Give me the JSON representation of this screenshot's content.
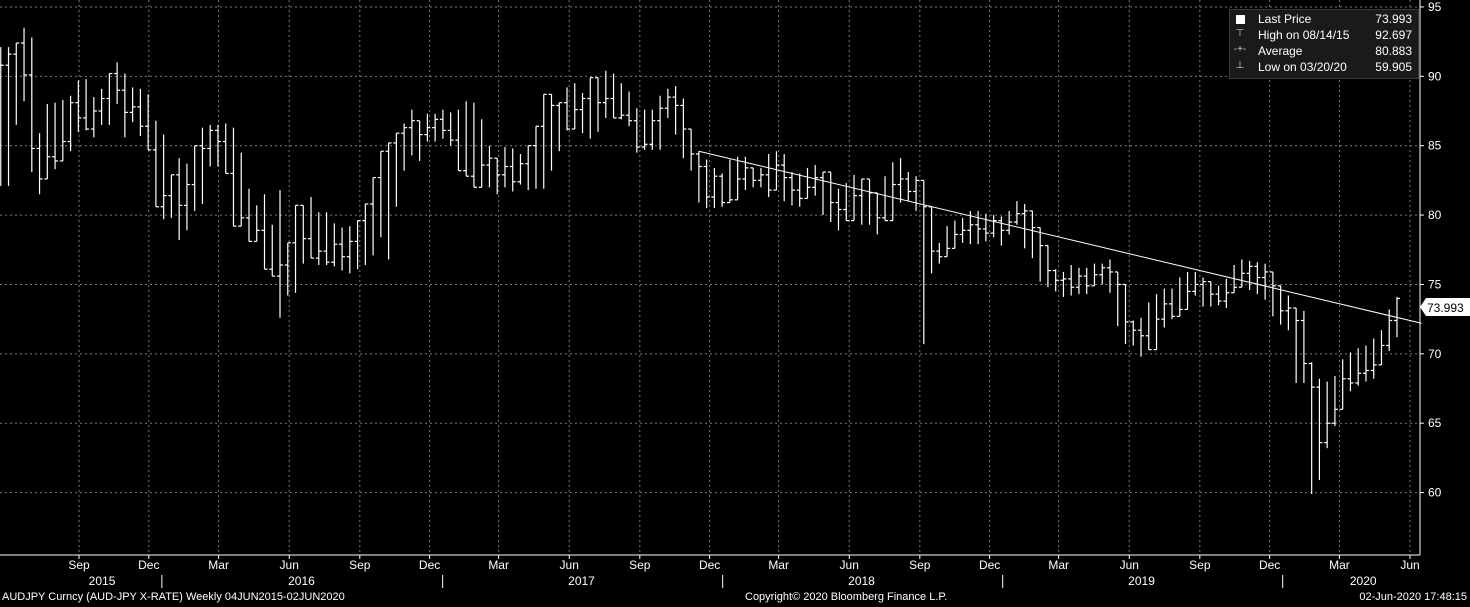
{
  "chart_data": {
    "type": "ohlc",
    "series_name": "AUDJPY Curncy (AUD-JPY X-RATE)",
    "frequency": "Weekly",
    "date_range": "04JUN2015-02JUN2020",
    "y_ticks": [
      60,
      65,
      70,
      75,
      80,
      85,
      90,
      95
    ],
    "y_range": [
      55.5,
      95.5
    ],
    "x_month_labels": [
      "Sep",
      "Dec",
      "Mar",
      "Jun",
      "Sep",
      "Dec",
      "Mar",
      "Jun",
      "Sep",
      "Dec",
      "Mar",
      "Jun",
      "Sep",
      "Dec",
      "Mar",
      "Jun",
      "Sep",
      "Dec",
      "Mar",
      "Jun"
    ],
    "x_year_labels": [
      "2015",
      "2016",
      "2017",
      "2018",
      "2019",
      "2020"
    ],
    "grid": true,
    "last_price_tag": "73.993",
    "trendline": {
      "x1": "2017-12-01",
      "y1": 84.6,
      "x2": "2020-06-30",
      "y2": 72.2
    },
    "closes": [
      90.8,
      91.6,
      92.4,
      90.1,
      84.8,
      82.6,
      84.2,
      83.9,
      85.3,
      88.1,
      87.0,
      86.2,
      87.5,
      88.4,
      90.2,
      89.0,
      87.4,
      87.8,
      86.4,
      84.7,
      80.6,
      81.4,
      82.9,
      80.7,
      82.2,
      85.0,
      84.8,
      86.1,
      85.3,
      83.0,
      79.2,
      79.8,
      78.1,
      78.9,
      76.1,
      75.6,
      76.4,
      78.0,
      80.7,
      78.3,
      76.9,
      77.4,
      76.6,
      77.9,
      77.0,
      78.1,
      79.6,
      80.8,
      82.7,
      84.6,
      85.2,
      85.9,
      86.3,
      86.8,
      85.8,
      86.3,
      86.9,
      86.1,
      85.4,
      83.2,
      82.8,
      82.0,
      83.6,
      84.1,
      82.9,
      83.5,
      82.4,
      83.7,
      85.0,
      86.4,
      88.7,
      87.9,
      88.1,
      86.2,
      87.6,
      88.4,
      89.9,
      88.1,
      88.4,
      87.0,
      87.2,
      86.8,
      84.9,
      85.1,
      86.8,
      87.7,
      88.5,
      87.9,
      86.2,
      84.4,
      83.5,
      81.3,
      82.8,
      80.9,
      81.1,
      82.6,
      83.4,
      82.5,
      82.9,
      81.8,
      83.6,
      82.7,
      81.8,
      81.2,
      82.0,
      82.7,
      83.1,
      80.9,
      80.4,
      79.6,
      81.4,
      82.6,
      81.6,
      79.8,
      79.6,
      82.2,
      82.6,
      81.7,
      82.5,
      80.6,
      77.4,
      77.0,
      77.6,
      78.6,
      78.9,
      79.3,
      79.0,
      78.7,
      79.6,
      78.9,
      79.5,
      80.1,
      80.3,
      79.1,
      77.8,
      76.0,
      75.3,
      75.4,
      74.8,
      75.6,
      74.9,
      75.7,
      76.2,
      75.9,
      75.0,
      72.3,
      71.7,
      71.3,
      70.3,
      72.5,
      73.6,
      72.7,
      73.2,
      74.5,
      75.0,
      75.2,
      74.3,
      73.8,
      74.4,
      74.8,
      75.8,
      76.3,
      75.5,
      75.9,
      74.9,
      73.1,
      73.3,
      72.4,
      69.3,
      67.6,
      63.6,
      65.0,
      66.0,
      68.2,
      67.9,
      68.6,
      68.8,
      69.2,
      70.6,
      72.4,
      73.993
    ],
    "ranges": [
      {
        "h": 92.1,
        "l": 82.1
      },
      {
        "h": 91.7,
        "l": 86.5
      },
      {
        "h": 93.5,
        "l": 88.2
      },
      {
        "h": 92.8,
        "l": 83.1
      },
      {
        "h": 85.9,
        "l": 81.5
      },
      {
        "h": 88.0,
        "l": 82.6
      },
      {
        "h": 88.1,
        "l": 83.3
      },
      {
        "h": 88.3,
        "l": 84.1
      },
      {
        "h": 88.6,
        "l": 84.6
      },
      {
        "h": 89.7,
        "l": 86.0
      },
      {
        "h": 89.8,
        "l": 86.1
      },
      {
        "h": 88.5,
        "l": 85.6
      },
      {
        "h": 89.1,
        "l": 86.5
      },
      {
        "h": 91.0,
        "l": 88.0
      },
      {
        "h": 90.2,
        "l": 85.6
      },
      {
        "h": 89.2,
        "l": 86.7
      },
      {
        "h": 89.1,
        "l": 85.7
      },
      {
        "h": 88.7,
        "l": 85.5
      },
      {
        "h": 86.8,
        "l": 84.3
      },
      {
        "h": 85.8,
        "l": 79.7
      },
      {
        "h": 82.6,
        "l": 79.8
      },
      {
        "h": 84.1,
        "l": 78.2
      },
      {
        "h": 83.7,
        "l": 78.9
      },
      {
        "h": 83.8,
        "l": 80.3
      },
      {
        "h": 86.3,
        "l": 80.8
      },
      {
        "h": 86.5,
        "l": 83.5
      },
      {
        "h": 86.6,
        "l": 84.7
      },
      {
        "h": 86.3,
        "l": 79.4
      },
      {
        "h": 84.5,
        "l": 80.1
      },
      {
        "h": 81.9,
        "l": 78.6
      },
      {
        "h": 80.7,
        "l": 78.9
      },
      {
        "h": 81.5,
        "l": 77.6
      },
      {
        "h": 79.3,
        "l": 76.3
      },
      {
        "h": 81.8,
        "l": 72.6
      },
      {
        "h": 77.6,
        "l": 74.2
      },
      {
        "h": 78.6,
        "l": 74.4
      },
      {
        "h": 80.5,
        "l": 76.5
      },
      {
        "h": 81.3,
        "l": 77.2
      },
      {
        "h": 80.2,
        "l": 76.4
      },
      {
        "h": 79.4,
        "l": 76.3
      },
      {
        "h": 79.1,
        "l": 76.0
      },
      {
        "h": 79.2,
        "l": 75.8
      },
      {
        "h": 79.5,
        "l": 76.1
      },
      {
        "h": 79.4,
        "l": 76.4
      },
      {
        "h": 80.8,
        "l": 77.1
      },
      {
        "h": 82.3,
        "l": 78.4
      },
      {
        "h": 83.5,
        "l": 76.8
      },
      {
        "h": 85.1,
        "l": 80.6
      },
      {
        "h": 86.6,
        "l": 83.2
      },
      {
        "h": 87.6,
        "l": 84.3
      },
      {
        "h": 86.7,
        "l": 83.9
      },
      {
        "h": 87.3,
        "l": 85.3
      },
      {
        "h": 87.6,
        "l": 85.5
      },
      {
        "h": 87.4,
        "l": 85.0
      },
      {
        "h": 87.6,
        "l": 85.7
      },
      {
        "h": 88.2,
        "l": 85.7
      },
      {
        "h": 88.1,
        "l": 85.2
      },
      {
        "h": 86.9,
        "l": 82.3
      },
      {
        "h": 85.0,
        "l": 82.0
      },
      {
        "h": 83.8,
        "l": 81.5
      },
      {
        "h": 84.9,
        "l": 82.0
      },
      {
        "h": 84.8,
        "l": 81.7
      },
      {
        "h": 84.4,
        "l": 82.2
      },
      {
        "h": 84.3,
        "l": 81.8
      },
      {
        "h": 84.6,
        "l": 81.9
      },
      {
        "h": 86.3,
        "l": 83.2
      },
      {
        "h": 87.4,
        "l": 84.6
      },
      {
        "h": 89.2,
        "l": 86.1
      },
      {
        "h": 89.5,
        "l": 87.0
      },
      {
        "h": 88.8,
        "l": 85.9
      },
      {
        "h": 88.4,
        "l": 85.5
      },
      {
        "h": 88.8,
        "l": 86.0
      },
      {
        "h": 90.4,
        "l": 87.0
      },
      {
        "h": 90.2,
        "l": 87.3
      },
      {
        "h": 89.5,
        "l": 86.9
      },
      {
        "h": 88.9,
        "l": 86.4
      },
      {
        "h": 87.7,
        "l": 84.5
      },
      {
        "h": 87.6,
        "l": 84.7
      },
      {
        "h": 88.6,
        "l": 84.7
      },
      {
        "h": 89.1,
        "l": 87.0
      },
      {
        "h": 89.3,
        "l": 85.8
      },
      {
        "h": 88.4,
        "l": 84.1
      },
      {
        "h": 85.5,
        "l": 83.2
      },
      {
        "h": 84.6,
        "l": 80.9
      },
      {
        "h": 84.0,
        "l": 80.5
      },
      {
        "h": 83.4,
        "l": 80.5
      },
      {
        "h": 83.0,
        "l": 80.6
      },
      {
        "h": 84.0,
        "l": 81.7
      },
      {
        "h": 84.2,
        "l": 82.0
      },
      {
        "h": 84.2,
        "l": 81.8
      },
      {
        "h": 83.4,
        "l": 82.0
      },
      {
        "h": 84.4,
        "l": 81.3
      },
      {
        "h": 84.6,
        "l": 82.1
      },
      {
        "h": 84.4,
        "l": 81.0
      },
      {
        "h": 83.1,
        "l": 80.7
      },
      {
        "h": 83.0,
        "l": 80.6
      },
      {
        "h": 83.4,
        "l": 81.9
      },
      {
        "h": 83.6,
        "l": 81.4
      },
      {
        "h": 82.1,
        "l": 80.0
      },
      {
        "h": 81.6,
        "l": 79.5
      },
      {
        "h": 81.9,
        "l": 78.9
      },
      {
        "h": 82.3,
        "l": 80.8
      },
      {
        "h": 82.9,
        "l": 80.7
      },
      {
        "h": 82.0,
        "l": 79.3
      },
      {
        "h": 81.3,
        "l": 78.6
      },
      {
        "h": 82.8,
        "l": 79.6
      },
      {
        "h": 83.8,
        "l": 81.8
      },
      {
        "h": 84.1,
        "l": 80.9
      },
      {
        "h": 83.1,
        "l": 81.0
      },
      {
        "h": 82.8,
        "l": 80.3
      },
      {
        "h": 81.1,
        "l": 70.7
      },
      {
        "h": 78.0,
        "l": 75.8
      },
      {
        "h": 78.0,
        "l": 76.5
      },
      {
        "h": 79.2,
        "l": 77.2
      },
      {
        "h": 79.6,
        "l": 77.6
      },
      {
        "h": 79.8,
        "l": 78.0
      },
      {
        "h": 80.3,
        "l": 77.9
      },
      {
        "h": 80.1,
        "l": 78.1
      },
      {
        "h": 80.0,
        "l": 78.4
      },
      {
        "h": 79.9,
        "l": 77.8
      },
      {
        "h": 80.3,
        "l": 78.6
      },
      {
        "h": 81.0,
        "l": 79.3
      },
      {
        "h": 80.8,
        "l": 77.6
      },
      {
        "h": 79.6,
        "l": 76.9
      },
      {
        "h": 78.0,
        "l": 75.2
      },
      {
        "h": 77.1,
        "l": 74.8
      },
      {
        "h": 76.1,
        "l": 74.5
      },
      {
        "h": 75.9,
        "l": 74.1
      },
      {
        "h": 76.4,
        "l": 74.2
      },
      {
        "h": 76.2,
        "l": 74.3
      },
      {
        "h": 76.5,
        "l": 75.0
      },
      {
        "h": 76.5,
        "l": 75.0
      },
      {
        "h": 76.8,
        "l": 74.4
      },
      {
        "h": 75.8,
        "l": 72.0
      },
      {
        "h": 73.6,
        "l": 70.7
      },
      {
        "h": 72.4,
        "l": 70.6
      },
      {
        "h": 72.6,
        "l": 69.8
      },
      {
        "h": 73.7,
        "l": 71.8
      },
      {
        "h": 74.3,
        "l": 72.0
      },
      {
        "h": 74.7,
        "l": 71.9
      },
      {
        "h": 74.7,
        "l": 72.5
      },
      {
        "h": 75.5,
        "l": 73.5
      },
      {
        "h": 75.9,
        "l": 74.2
      },
      {
        "h": 75.5,
        "l": 73.4
      },
      {
        "h": 75.1,
        "l": 73.4
      },
      {
        "h": 74.9,
        "l": 73.5
      },
      {
        "h": 75.4,
        "l": 73.3
      },
      {
        "h": 76.4,
        "l": 74.4
      },
      {
        "h": 76.8,
        "l": 75.1
      },
      {
        "h": 76.7,
        "l": 74.6
      },
      {
        "h": 76.6,
        "l": 74.3
      },
      {
        "h": 76.5,
        "l": 73.9
      },
      {
        "h": 75.4,
        "l": 72.7
      },
      {
        "h": 74.4,
        "l": 72.1
      },
      {
        "h": 74.2,
        "l": 71.7
      },
      {
        "h": 73.1,
        "l": 67.9
      },
      {
        "h": 69.4,
        "l": 59.9
      },
      {
        "h": 68.2,
        "l": 60.9
      },
      {
        "h": 68.0,
        "l": 63.2
      },
      {
        "h": 68.4,
        "l": 64.8
      },
      {
        "h": 69.6,
        "l": 66.6
      },
      {
        "h": 70.1,
        "l": 67.3
      },
      {
        "h": 70.4,
        "l": 67.7
      },
      {
        "h": 70.6,
        "l": 68.0
      },
      {
        "h": 71.1,
        "l": 68.2
      },
      {
        "h": 71.7,
        "l": 69.6
      },
      {
        "h": 73.2,
        "l": 70.2
      },
      {
        "h": 74.1,
        "l": 71.2
      }
    ],
    "legend": {
      "last_price": {
        "label": "Last Price",
        "value": "73.993"
      },
      "high": {
        "label": "High on 08/14/15",
        "value": "92.697"
      },
      "average": {
        "label": "Average",
        "value": "80.883"
      },
      "low": {
        "label": "Low on 03/20/20",
        "value": "59.905"
      }
    }
  },
  "footer": {
    "left": "AUDJPY Curncy (AUD-JPY X-RATE)  Weekly 04JUN2015-02JUN2020",
    "center": "Copyright© 2020 Bloomberg Finance L.P.",
    "right": "02-Jun-2020 17:48:15"
  }
}
